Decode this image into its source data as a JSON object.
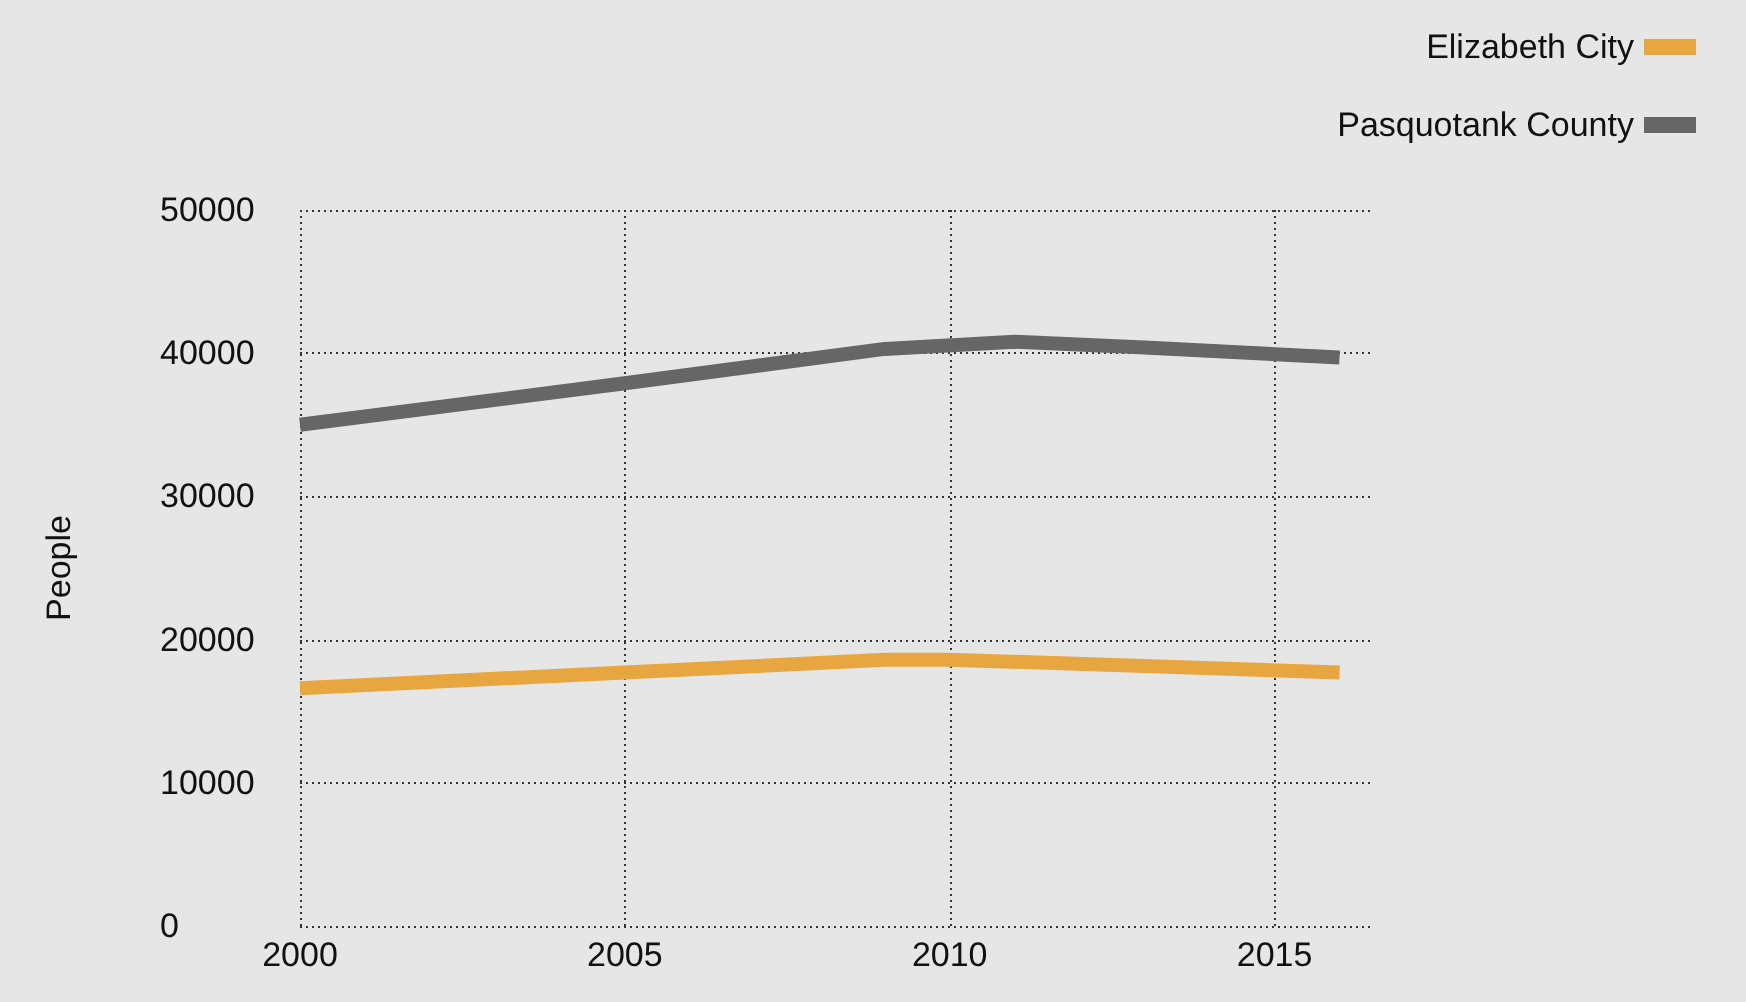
{
  "chart_data": {
    "type": "line",
    "ylabel": "People",
    "series": [
      {
        "name": "Elizabeth City",
        "color": "#e8a640",
        "x": [
          2000,
          2005,
          2009,
          2010,
          2016
        ],
        "values": [
          16600,
          17700,
          18600,
          18600,
          17700
        ]
      },
      {
        "name": "Pasquotank County",
        "color": "#666666",
        "x": [
          2000,
          2005,
          2009,
          2011,
          2013,
          2016
        ],
        "values": [
          35000,
          37900,
          40300,
          40800,
          40400,
          39700
        ]
      }
    ],
    "xlim": [
      2000,
      2016.5
    ],
    "xticks": [
      2000,
      2005,
      2010,
      2015
    ],
    "ylim": [
      0,
      50000
    ],
    "yticks": [
      0,
      10000,
      20000,
      30000,
      40000,
      50000
    ],
    "grid": true,
    "legend": "top right",
    "marker": "none",
    "line_style": "solid"
  }
}
